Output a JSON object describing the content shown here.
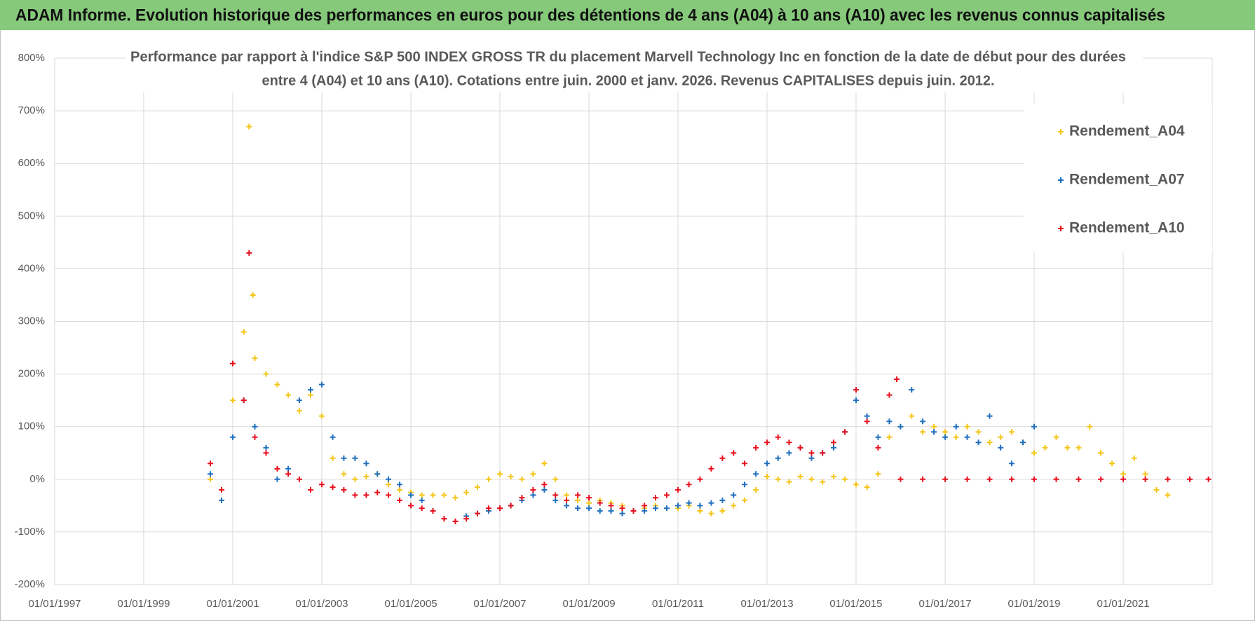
{
  "header": {
    "title": "ADAM Informe. Evolution historique des performances en euros pour des détentions de 4 ans (A04) à 10 ans (A10) avec les revenus connus capitalisés"
  },
  "chart_data": {
    "type": "scatter",
    "title": [
      "Performance par rapport à l'indice S&P 500 INDEX GROSS TR  du placement Marvell Technology Inc en fonction de la date de début pour des durées",
      "entre 4 (A04) et 10 ans (A10).  Cotations entre juin. 2000 et janv. 2026. Revenus CAPITALISES  depuis juin. 2012."
    ],
    "xlim": [
      "1997-01-01",
      "2023-01-01"
    ],
    "xticks": [
      {
        "value": "1997-01-01",
        "label": "01/01/1997"
      },
      {
        "value": "1999-01-01",
        "label": "01/01/1999"
      },
      {
        "value": "2001-01-01",
        "label": "01/01/2001"
      },
      {
        "value": "2003-01-01",
        "label": "01/01/2003"
      },
      {
        "value": "2005-01-01",
        "label": "01/01/2005"
      },
      {
        "value": "2007-01-01",
        "label": "01/01/2007"
      },
      {
        "value": "2009-01-01",
        "label": "01/01/2009"
      },
      {
        "value": "2011-01-01",
        "label": "01/01/2011"
      },
      {
        "value": "2013-01-01",
        "label": "01/01/2013"
      },
      {
        "value": "2015-01-01",
        "label": "01/01/2015"
      },
      {
        "value": "2017-01-01",
        "label": "01/01/2017"
      },
      {
        "value": "2019-01-01",
        "label": "01/01/2019"
      },
      {
        "value": "2021-01-01",
        "label": "01/01/2021"
      }
    ],
    "ylim": [
      -200,
      800
    ],
    "yticks": [
      {
        "value": -200,
        "label": "-200%"
      },
      {
        "value": -100,
        "label": "-100%"
      },
      {
        "value": 0,
        "label": "0%"
      },
      {
        "value": 100,
        "label": "100%"
      },
      {
        "value": 200,
        "label": "200%"
      },
      {
        "value": 300,
        "label": "300%"
      },
      {
        "value": 400,
        "label": "400%"
      },
      {
        "value": 500,
        "label": "500%"
      },
      {
        "value": 600,
        "label": "600%"
      },
      {
        "value": 700,
        "label": "700%"
      },
      {
        "value": 800,
        "label": "800%"
      }
    ],
    "grid": true,
    "legend": "top-right",
    "series": [
      {
        "name": "Rendement_A04",
        "color": "#f5c518",
        "x": [
          "2000-07-01",
          "2000-10-01",
          "2001-01-01",
          "2001-04-01",
          "2001-05-15",
          "2001-06-15",
          "2001-07-01",
          "2001-10-01",
          "2002-01-01",
          "2002-04-01",
          "2002-07-01",
          "2002-10-01",
          "2003-01-01",
          "2003-04-01",
          "2003-07-01",
          "2003-10-01",
          "2004-01-01",
          "2004-04-01",
          "2004-07-01",
          "2004-10-01",
          "2005-01-01",
          "2005-04-01",
          "2005-07-01",
          "2005-10-01",
          "2006-01-01",
          "2006-04-01",
          "2006-07-01",
          "2006-10-01",
          "2007-01-01",
          "2007-04-01",
          "2007-07-01",
          "2007-10-01",
          "2008-01-01",
          "2008-04-01",
          "2008-07-01",
          "2008-10-01",
          "2009-01-01",
          "2009-04-01",
          "2009-07-01",
          "2009-10-01",
          "2010-01-01",
          "2010-04-01",
          "2010-07-01",
          "2010-10-01",
          "2011-01-01",
          "2011-04-01",
          "2011-07-01",
          "2011-10-01",
          "2012-01-01",
          "2012-04-01",
          "2012-07-01",
          "2012-10-01",
          "2013-01-01",
          "2013-04-01",
          "2013-07-01",
          "2013-10-01",
          "2014-01-01",
          "2014-04-01",
          "2014-07-01",
          "2014-10-01",
          "2015-01-01",
          "2015-04-01",
          "2015-07-01",
          "2015-10-01",
          "2016-01-01",
          "2016-04-01",
          "2016-07-01",
          "2016-10-01",
          "2017-01-01",
          "2017-04-01",
          "2017-07-01",
          "2017-10-01",
          "2018-01-01",
          "2018-04-01",
          "2018-07-01",
          "2018-10-01",
          "2019-01-01",
          "2019-04-01",
          "2019-07-01",
          "2019-10-01",
          "2020-01-01",
          "2020-04-01",
          "2020-07-01",
          "2020-10-01",
          "2021-01-01",
          "2021-04-01",
          "2021-07-01",
          "2021-10-01",
          "2022-01-01"
        ],
        "values": [
          0,
          -20,
          150,
          280,
          670,
          350,
          230,
          200,
          180,
          160,
          130,
          160,
          120,
          40,
          10,
          0,
          5,
          10,
          -10,
          -20,
          -25,
          -30,
          -30,
          -30,
          -35,
          -25,
          -15,
          0,
          10,
          5,
          0,
          10,
          30,
          0,
          -30,
          -40,
          -45,
          -40,
          -45,
          -50,
          -60,
          -55,
          -50,
          -55,
          -55,
          -50,
          -60,
          -65,
          -60,
          -50,
          -40,
          -20,
          5,
          0,
          -5,
          5,
          0,
          -5,
          5,
          0,
          -10,
          -15,
          10,
          80,
          100,
          120,
          90,
          100,
          90,
          80,
          100,
          90,
          70,
          80,
          90,
          70,
          50,
          60,
          80,
          60,
          60,
          100,
          50,
          30,
          10,
          40,
          10,
          -20,
          -30
        ]
      },
      {
        "name": "Rendement_A07",
        "color": "#1f6fbf",
        "x": [
          "2000-07-01",
          "2000-10-01",
          "2001-01-01",
          "2001-04-01",
          "2001-07-01",
          "2001-10-01",
          "2002-01-01",
          "2002-04-01",
          "2002-07-01",
          "2002-10-01",
          "2003-01-01",
          "2003-04-01",
          "2003-07-01",
          "2003-10-01",
          "2004-01-01",
          "2004-04-01",
          "2004-07-01",
          "2004-10-01",
          "2005-01-01",
          "2005-04-01",
          "2005-07-01",
          "2005-10-01",
          "2006-01-01",
          "2006-04-01",
          "2006-07-01",
          "2006-10-01",
          "2007-01-01",
          "2007-04-01",
          "2007-07-01",
          "2007-10-01",
          "2008-01-01",
          "2008-04-01",
          "2008-07-01",
          "2008-10-01",
          "2009-01-01",
          "2009-04-01",
          "2009-07-01",
          "2009-10-01",
          "2010-01-01",
          "2010-04-01",
          "2010-07-01",
          "2010-10-01",
          "2011-01-01",
          "2011-04-01",
          "2011-07-01",
          "2011-10-01",
          "2012-01-01",
          "2012-04-01",
          "2012-07-01",
          "2012-10-01",
          "2013-01-01",
          "2013-04-01",
          "2013-07-01",
          "2013-10-01",
          "2014-01-01",
          "2014-04-01",
          "2014-07-01",
          "2014-10-01",
          "2015-01-01",
          "2015-04-01",
          "2015-07-01",
          "2015-10-01",
          "2016-01-01",
          "2016-04-01",
          "2016-07-01",
          "2016-10-01",
          "2017-01-01",
          "2017-04-01",
          "2017-07-01",
          "2017-10-01",
          "2018-01-01",
          "2018-04-01",
          "2018-07-01",
          "2018-10-01",
          "2019-01-01"
        ],
        "values": [
          10,
          -40,
          80,
          150,
          100,
          60,
          0,
          20,
          150,
          170,
          180,
          80,
          40,
          40,
          30,
          10,
          0,
          -10,
          -30,
          -40,
          -60,
          -75,
          -80,
          -70,
          -65,
          -60,
          -55,
          -50,
          -40,
          -30,
          -20,
          -40,
          -50,
          -55,
          -55,
          -60,
          -60,
          -65,
          -60,
          -60,
          -55,
          -55,
          -50,
          -45,
          -50,
          -45,
          -40,
          -30,
          -10,
          10,
          30,
          40,
          50,
          60,
          40,
          50,
          60,
          90,
          150,
          120,
          80,
          110,
          100,
          170,
          110,
          90,
          80,
          100,
          80,
          70,
          120,
          60,
          30,
          70,
          100
        ]
      },
      {
        "name": "Rendement_A10",
        "color": "#e8101e",
        "x": [
          "2000-07-01",
          "2000-10-01",
          "2001-01-01",
          "2001-04-01",
          "2001-05-15",
          "2001-07-01",
          "2001-10-01",
          "2002-01-01",
          "2002-04-01",
          "2002-07-01",
          "2002-10-01",
          "2003-01-01",
          "2003-04-01",
          "2003-07-01",
          "2003-10-01",
          "2004-01-01",
          "2004-04-01",
          "2004-07-01",
          "2004-10-01",
          "2005-01-01",
          "2005-04-01",
          "2005-07-01",
          "2005-10-01",
          "2006-01-01",
          "2006-04-01",
          "2006-07-01",
          "2006-10-01",
          "2007-01-01",
          "2007-04-01",
          "2007-07-01",
          "2007-10-01",
          "2008-01-01",
          "2008-04-01",
          "2008-07-01",
          "2008-10-01",
          "2009-01-01",
          "2009-04-01",
          "2009-07-01",
          "2009-10-01",
          "2010-01-01",
          "2010-04-01",
          "2010-07-01",
          "2010-10-01",
          "2011-01-01",
          "2011-04-01",
          "2011-07-01",
          "2011-10-01",
          "2012-01-01",
          "2012-04-01",
          "2012-07-01",
          "2012-10-01",
          "2013-01-01",
          "2013-04-01",
          "2013-07-01",
          "2013-10-01",
          "2014-01-01",
          "2014-04-01",
          "2014-07-01",
          "2014-10-01",
          "2015-01-01",
          "2015-04-01",
          "2015-07-01",
          "2015-10-01",
          "2015-12-01",
          "2016-01-01",
          "2016-07-01",
          "2017-01-01",
          "2017-07-01",
          "2018-01-01",
          "2018-07-01",
          "2019-01-01",
          "2019-07-01",
          "2020-01-01",
          "2020-07-01",
          "2021-01-01",
          "2021-07-01",
          "2022-01-01",
          "2022-07-01",
          "2022-12-01"
        ],
        "values": [
          30,
          -20,
          220,
          150,
          430,
          80,
          50,
          20,
          10,
          0,
          -20,
          -10,
          -15,
          -20,
          -30,
          -30,
          -25,
          -30,
          -40,
          -50,
          -55,
          -60,
          -75,
          -80,
          -75,
          -65,
          -55,
          -55,
          -50,
          -35,
          -20,
          -10,
          -30,
          -40,
          -30,
          -35,
          -45,
          -50,
          -55,
          -60,
          -50,
          -35,
          -30,
          -20,
          -10,
          0,
          20,
          40,
          50,
          30,
          60,
          70,
          80,
          70,
          60,
          50,
          50,
          70,
          90,
          170,
          110,
          60,
          160,
          190,
          0,
          0,
          0,
          0,
          0,
          0,
          0,
          0,
          0,
          0,
          0,
          0,
          0,
          0,
          0
        ]
      }
    ]
  }
}
